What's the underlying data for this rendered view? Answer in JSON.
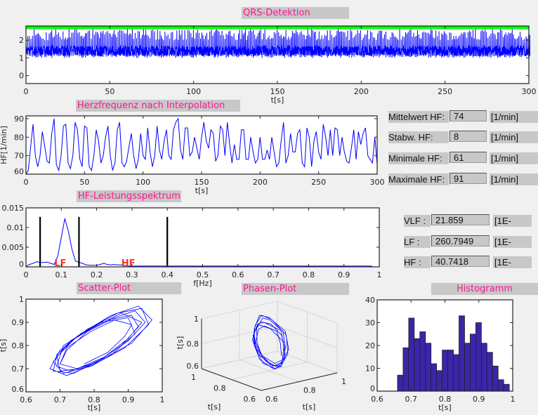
{
  "titles": {
    "qrs": "QRS-Detektion",
    "hr": "Herzfrequenz nach Interpolation",
    "spectrum": "HF-Leistungsspektrum",
    "scatter": "Scatter-Plot",
    "phase": "Phasen-Plot",
    "hist": "Histogramm"
  },
  "stats": [
    {
      "label": "Mittelwert HF:",
      "value": "74",
      "unit": "[1/min]"
    },
    {
      "label": "Stabw. HF:",
      "value": "8",
      "unit": "[1/min]"
    },
    {
      "label": "Minimale HF:",
      "value": "61",
      "unit": "[1/min]"
    },
    {
      "label": "Maximale HF:",
      "value": "91",
      "unit": "[1/min]"
    }
  ],
  "bands": [
    {
      "label": "VLF :",
      "value": "21.859",
      "unit": "[1E-"
    },
    {
      "label": "LF :",
      "value": "260.7949",
      "unit": "[1E-"
    },
    {
      "label": "HF :",
      "value": "40.7418",
      "unit": "[1E-"
    }
  ],
  "colors": {
    "signal": "#0000ff",
    "detection": "#00ff00",
    "band_marker": "#000000",
    "band_label": "#ff3030",
    "hist_bar": "#3a26a8",
    "title_text": "#ff1493"
  },
  "chart_data": [
    {
      "id": "qrs",
      "type": "line",
      "title": "QRS-Detektion",
      "xlabel": "t[s]",
      "ylabel": "",
      "xlim": [
        0,
        300
      ],
      "ylim": [
        -0.45,
        2.8
      ],
      "xticks": [
        0,
        50,
        100,
        150,
        200,
        250,
        300
      ],
      "yticks": [
        0,
        1,
        2
      ],
      "detection_level": 2.7,
      "baseline_range": [
        1.1,
        1.7
      ],
      "r_peak_range": [
        2.0,
        2.65
      ]
    },
    {
      "id": "hr",
      "type": "line",
      "title": "Herzfrequenz nach Interpolation",
      "xlabel": "t[s]",
      "ylabel": "HF[1/min]",
      "xlim": [
        0,
        300
      ],
      "ylim": [
        60,
        91.5
      ],
      "xticks": [
        0,
        50,
        100,
        150,
        200,
        250,
        300
      ],
      "yticks": [
        60,
        70,
        80,
        90
      ],
      "x_step": 2,
      "values": [
        60,
        62,
        75,
        87,
        70,
        64,
        70,
        83,
        75,
        67,
        66,
        82,
        90,
        65,
        62,
        70,
        86,
        87,
        66,
        63,
        70,
        88,
        84,
        68,
        64,
        86,
        85,
        64,
        62,
        70,
        84,
        78,
        66,
        70,
        80,
        86,
        70,
        62,
        66,
        84,
        88,
        66,
        64,
        67,
        75,
        82,
        70,
        63,
        68,
        82,
        70,
        68,
        85,
        72,
        64,
        70,
        86,
        73,
        68,
        78,
        84,
        70,
        68,
        84,
        88,
        90,
        73,
        68,
        85,
        85,
        70,
        72,
        80,
        74,
        68,
        80,
        88,
        78,
        74,
        84,
        82,
        67,
        70,
        86,
        84,
        70,
        88,
        76,
        66,
        76,
        68,
        68,
        84,
        84,
        68,
        68,
        80,
        72,
        66,
        68,
        80,
        68,
        68,
        73,
        68,
        80,
        72,
        64,
        66,
        78,
        88,
        66,
        70,
        82,
        72,
        72,
        82,
        84,
        66,
        64,
        85,
        80,
        64,
        78,
        83,
        72,
        68,
        87,
        80,
        70,
        84,
        70,
        85,
        84,
        70,
        80,
        72,
        67,
        66,
        74,
        84,
        68,
        83,
        76,
        82,
        85,
        70,
        68,
        66,
        80,
        65
      ]
    },
    {
      "id": "spectrum",
      "type": "line",
      "title": "HF-Leistungsspektrum",
      "xlabel": "f[Hz]",
      "ylabel": "",
      "xlim": [
        0,
        1
      ],
      "ylim": [
        0,
        0.015
      ],
      "xticks": [
        0,
        0.1,
        0.2,
        0.3,
        0.4,
        0.5,
        0.6,
        0.7,
        0.8,
        0.9,
        1
      ],
      "yticks": [
        0,
        0.005,
        0.01,
        0.015
      ],
      "f": [
        0,
        0.01,
        0.02,
        0.03,
        0.04,
        0.05,
        0.06,
        0.07,
        0.08,
        0.09,
        0.1,
        0.11,
        0.12,
        0.13,
        0.14,
        0.15,
        0.16,
        0.17,
        0.18,
        0.19,
        0.2,
        0.21,
        0.22,
        0.23,
        0.24,
        0.25,
        0.26,
        0.27,
        0.28,
        0.29,
        0.3,
        0.98
      ],
      "p": [
        0.0001,
        0.0006,
        0.0009,
        0.0013,
        0.0011,
        0.0011,
        0.0012,
        0.0009,
        0.0006,
        0.0028,
        0.0075,
        0.0123,
        0.009,
        0.0045,
        0.0015,
        0.0011,
        0.0009,
        0.0005,
        0.0004,
        0.0004,
        0.0004,
        0.0006,
        0.0009,
        0.0006,
        0.0005,
        0.0006,
        0.0005,
        0.0005,
        0.0003,
        0.0002,
        0.0002,
        0.0002
      ],
      "band_limits": [
        0.04,
        0.15,
        0.4
      ],
      "band_limit_height": 0.0127,
      "annotations": [
        {
          "text": "LF",
          "x": 0.08
        },
        {
          "text": "HF",
          "x": 0.27
        }
      ]
    },
    {
      "id": "scatter",
      "type": "line",
      "title": "Scatter-Plot",
      "xlabel": "t[s]",
      "ylabel": "t[s]",
      "xlim": [
        0.6,
        1
      ],
      "ylim": [
        0.6,
        1
      ],
      "xticks": [
        0.6,
        0.7,
        0.8,
        0.9,
        1
      ],
      "yticks": [
        0.6,
        0.7,
        0.8,
        0.9,
        1
      ],
      "rr": [
        0.7,
        0.72,
        0.78,
        0.86,
        0.92,
        0.95,
        0.9,
        0.82,
        0.74,
        0.68,
        0.69,
        0.75,
        0.84,
        0.91,
        0.93,
        0.88,
        0.8,
        0.72,
        0.67,
        0.7,
        0.78,
        0.87,
        0.94,
        0.96,
        0.89,
        0.79,
        0.71,
        0.68,
        0.73,
        0.82,
        0.9,
        0.92,
        0.85,
        0.76,
        0.7,
        0.69,
        0.76,
        0.85,
        0.93,
        0.97,
        0.91,
        0.81,
        0.73,
        0.69,
        0.71,
        0.8,
        0.88,
        0.94,
        0.9,
        0.83,
        0.75,
        0.7,
        0.72,
        0.79,
        0.86,
        0.91,
        0.89,
        0.84,
        0.77,
        0.72
      ]
    },
    {
      "id": "phase",
      "type": "line3d",
      "title": "Phasen-Plot",
      "xlabel": "t[s]",
      "ylabel": "t[s]",
      "zlabel": "t[s]",
      "xlim": [
        0.6,
        1
      ],
      "ylim": [
        0.6,
        1
      ],
      "zlim": [
        0.6,
        1
      ],
      "xticks": [
        0.6,
        0.8,
        1
      ],
      "yticks": [
        0.6,
        0.8,
        1
      ],
      "zticks": [
        0.6,
        0.8,
        1
      ]
    },
    {
      "id": "hist",
      "type": "bar",
      "title": "Histogramm",
      "xlabel": "t[s]",
      "ylabel": "",
      "xlim": [
        0.6,
        1
      ],
      "ylim": [
        0,
        40
      ],
      "xticks": [
        0.6,
        0.7,
        0.8,
        0.9,
        1
      ],
      "yticks": [
        0,
        10,
        20,
        30,
        40
      ],
      "bin_range": [
        0.66,
        0.99
      ],
      "values": [
        7,
        19,
        32,
        23,
        26,
        21,
        12,
        9,
        18,
        18,
        16,
        33,
        21,
        25,
        30,
        21,
        17,
        11,
        5,
        3
      ]
    }
  ]
}
